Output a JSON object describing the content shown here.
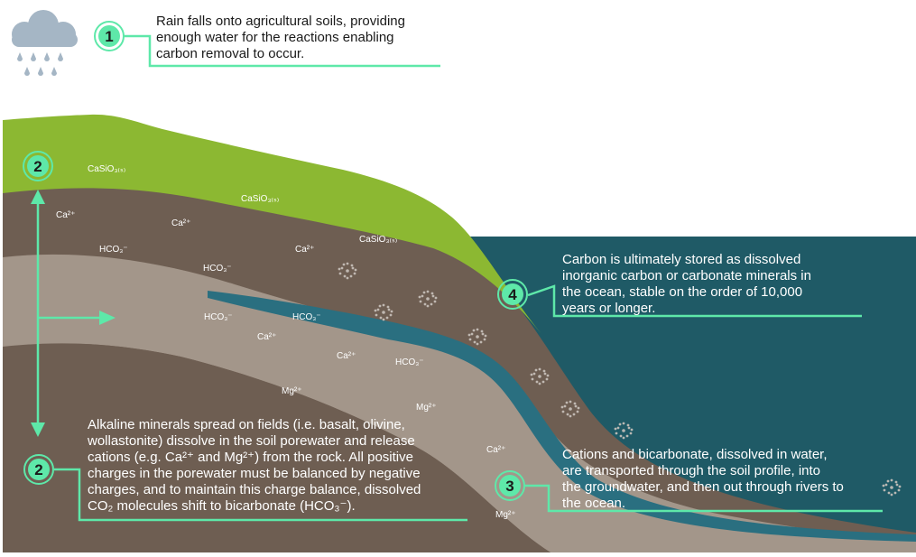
{
  "steps": [
    {
      "number": "1",
      "lines": [
        "Rain falls onto agricultural soils, providing",
        "enough water for the reactions enabling",
        "carbon removal to occur."
      ]
    },
    {
      "number": "2",
      "top_number": "2",
      "lines": [
        "Alkaline minerals spread on fields (i.e. basalt, olivine,",
        "wollastonite) dissolve in the soil porewater and release",
        "cations (e.g. Ca²⁺ and Mg²⁺) from the rock. All positive",
        "charges in the porewater must be balanced by negative",
        "charges, and to maintain this charge balance, dissolved",
        "CO₂ molecules shift to bicarbonate (HCO₃⁻)."
      ]
    },
    {
      "number": "3",
      "lines": [
        "Cations and bicarbonate, dissolved in water,",
        "are transported through the soil profile, into",
        "the groundwater, and then out through rivers to",
        "the ocean."
      ]
    },
    {
      "number": "4",
      "lines": [
        "Carbon is ultimately stored as dissolved",
        "inorganic carbon or carbonate minerals in",
        "the ocean, stable on the order of 10,000",
        "years or longer."
      ]
    }
  ],
  "labels": {
    "casio3": "CaSiO₃₍ₛ₎",
    "ca": "Ca²⁺",
    "hco3": "HCO₃⁻",
    "mg": "Mg²⁺"
  },
  "colors": {
    "grass": "#8cb832",
    "soil_dark": "#6e5e52",
    "soil_mid": "#85766a",
    "soil_light": "#a3968a",
    "groundwater": "#2a6f80",
    "ocean": "#1f5a66",
    "accent": "#5ee8a9",
    "cloud": "#a5b6c5"
  },
  "icons": [
    "rain-cloud-icon",
    "bubble-cluster-icon",
    "arrow-icon"
  ]
}
